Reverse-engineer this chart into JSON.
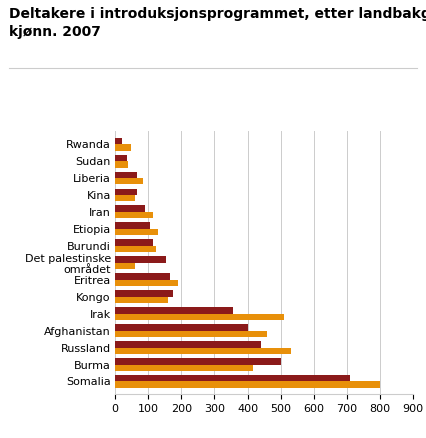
{
  "title_line1": "Deltakere i introduksjonsprogrammet, etter landbakgrunn og",
  "title_line2": "kjønn. 2007",
  "categories": [
    "Somalia",
    "Burma",
    "Russland",
    "Afghanistan",
    "Irak",
    "Kongo",
    "Eritrea",
    "Det palestinske\nområdet",
    "Burundi",
    "Etiopia",
    "Iran",
    "Kina",
    "Liberia",
    "Sudan",
    "Rwanda"
  ],
  "menn": [
    710,
    500,
    440,
    400,
    355,
    175,
    165,
    155,
    115,
    105,
    90,
    65,
    65,
    35,
    20
  ],
  "kvinner": [
    800,
    415,
    530,
    460,
    510,
    160,
    190,
    60,
    125,
    130,
    115,
    60,
    85,
    38,
    48
  ],
  "color_menn": "#8B1A1A",
  "color_kvinner": "#E8900A",
  "xlim": [
    0,
    900
  ],
  "xticks": [
    0,
    100,
    200,
    300,
    400,
    500,
    600,
    700,
    800,
    900
  ],
  "grid_color": "#cccccc",
  "title_fontsize": 10,
  "tick_fontsize": 8,
  "legend_fontsize": 9,
  "bar_height": 0.38
}
